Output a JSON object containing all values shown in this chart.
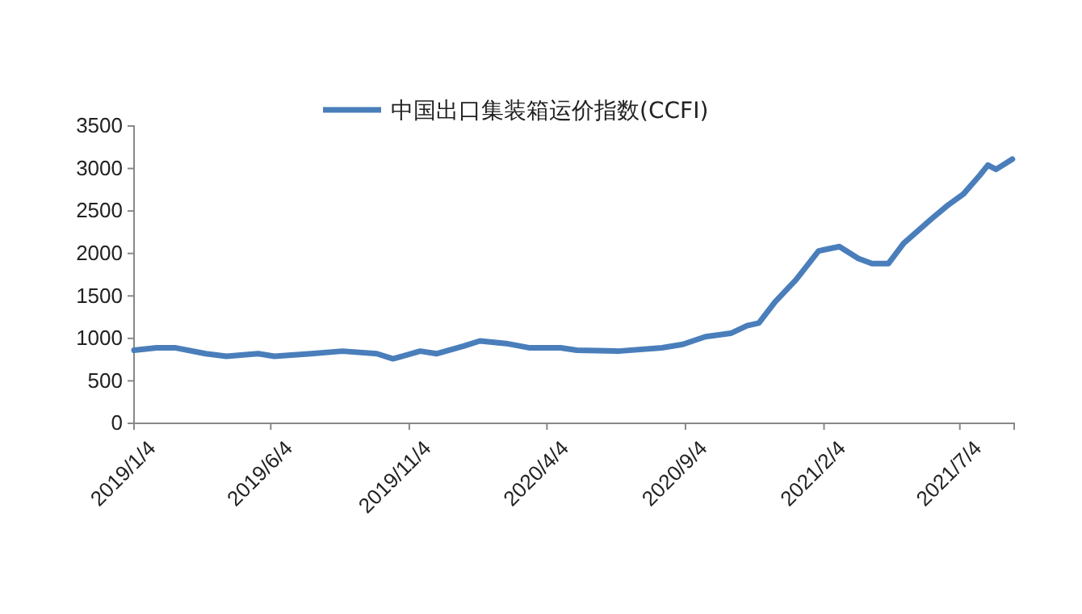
{
  "chart_data": {
    "type": "line",
    "legend": "top",
    "x": [
      "2019-01-04",
      "2019-01-29",
      "2019-02-18",
      "2019-03-24",
      "2019-04-16",
      "2019-05-21",
      "2019-06-08",
      "2019-07-19",
      "2019-08-22",
      "2019-09-29",
      "2019-10-17",
      "2019-11-16",
      "2019-12-04",
      "2020-01-03",
      "2020-01-21",
      "2020-02-19",
      "2020-03-15",
      "2020-04-19",
      "2020-05-07",
      "2020-06-22",
      "2020-08-09",
      "2020-09-01",
      "2020-09-26",
      "2020-10-24",
      "2020-11-11",
      "2020-11-24",
      "2020-12-12",
      "2021-01-04",
      "2021-01-29",
      "2021-02-21",
      "2021-03-14",
      "2021-03-29",
      "2021-04-16",
      "2021-05-03",
      "2021-06-03",
      "2021-06-21",
      "2021-07-08",
      "2021-07-26",
      "2021-08-04",
      "2021-08-13",
      "2021-08-31"
    ],
    "series": [
      {
        "name": "中国出口集装箱运价指数(CCFI)",
        "color": "#4a7ebb",
        "values": [
          860,
          890,
          890,
          820,
          790,
          820,
          790,
          820,
          850,
          820,
          760,
          850,
          820,
          910,
          970,
          940,
          890,
          890,
          860,
          850,
          890,
          930,
          1020,
          1060,
          1150,
          1180,
          1430,
          1690,
          2030,
          2080,
          1940,
          1880,
          1880,
          2120,
          2410,
          2570,
          2700,
          2920,
          3040,
          2990,
          3110
        ]
      }
    ],
    "xlim": [
      "2019-01-04",
      "2021-09-02"
    ],
    "xticks": [
      {
        "value": "2019-01-04",
        "label": "2019/1/4"
      },
      {
        "value": "2019-06-04",
        "label": "2019/6/4"
      },
      {
        "value": "2019-11-04",
        "label": "2019/11/4"
      },
      {
        "value": "2020-04-04",
        "label": "2020/4/4"
      },
      {
        "value": "2020-09-04",
        "label": "2020/9/4"
      },
      {
        "value": "2021-02-04",
        "label": "2021/2/4"
      },
      {
        "value": "2021-07-04",
        "label": "2021/7/4"
      }
    ],
    "ylim": [
      0,
      3500
    ],
    "yticks": [
      0,
      500,
      1000,
      1500,
      2000,
      2500,
      3000,
      3500
    ],
    "grid": false,
    "marker": "none",
    "line_style": "solid"
  }
}
